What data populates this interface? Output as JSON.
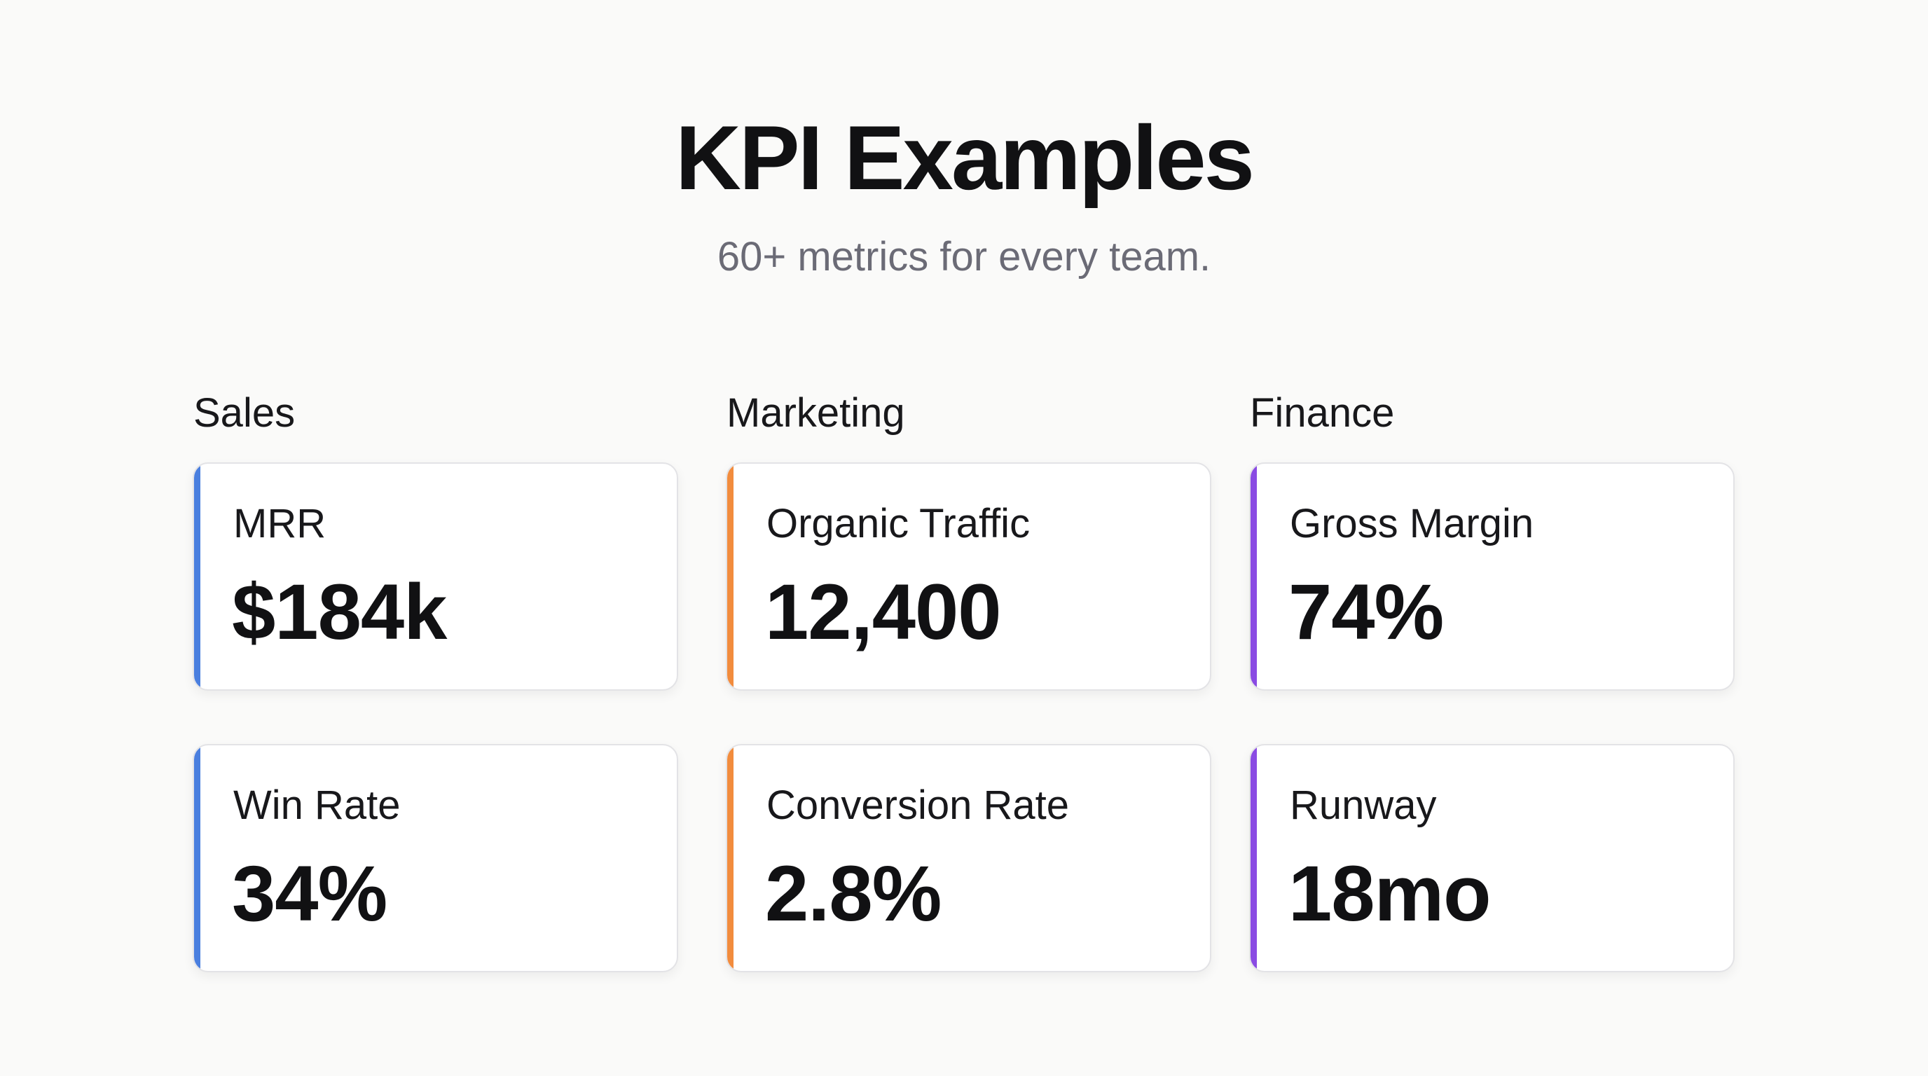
{
  "header": {
    "title": "KPI Examples",
    "subtitle": "60+ metrics for every team."
  },
  "theme": {
    "background": "#fafaf9",
    "sales_accent": "#4a7fdf",
    "marketing_accent": "#f28c3d",
    "finance_accent": "#8a4be3"
  },
  "columns": [
    {
      "name": "Sales",
      "cards": [
        {
          "label": "MRR",
          "value": "$184k"
        },
        {
          "label": "Win Rate",
          "value": "34%"
        }
      ]
    },
    {
      "name": "Marketing",
      "cards": [
        {
          "label": "Organic Traffic",
          "value": "12,400"
        },
        {
          "label": "Conversion Rate",
          "value": "2.8%"
        }
      ]
    },
    {
      "name": "Finance",
      "cards": [
        {
          "label": "Gross Margin",
          "value": "74%"
        },
        {
          "label": "Runway",
          "value": "18mo"
        }
      ]
    }
  ]
}
